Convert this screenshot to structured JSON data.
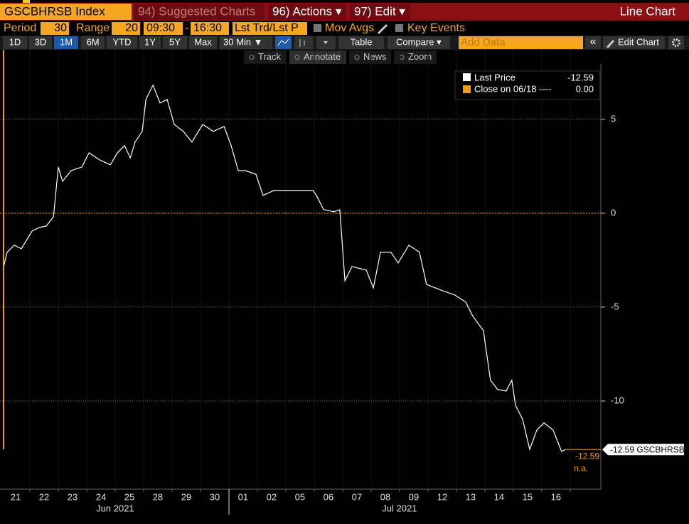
{
  "header": {
    "ticker": "GSCBHRSB Index",
    "suggested": "94) Suggested Charts",
    "actions": "96) Actions ▾",
    "edit": "97) Edit ▾",
    "view": "Line Chart"
  },
  "settings": {
    "period_label": "Period",
    "period": "30",
    "range_label": "Range",
    "range": "20",
    "start": "09:30",
    "dash": "-",
    "end": "16:30",
    "field": "Lst Trd/Lst P",
    "mov_avgs": "Mov Avgs",
    "key_events": "Key Events"
  },
  "toolbar": {
    "buttons": [
      "1D",
      "3D",
      "1M",
      "6M",
      "YTD",
      "1Y",
      "5Y",
      "Max"
    ],
    "interval": "30 Min ▼",
    "table": "Table",
    "compare": "Compare ▾",
    "add_data": "Add Data",
    "collapse": "«",
    "edit_chart": "Edit Chart"
  },
  "chart_tools": [
    "Track",
    "Annotate",
    "News",
    "Zoom"
  ],
  "chart_data": {
    "type": "line",
    "series": [
      {
        "name": "Last Price",
        "color": "#ffffff",
        "value_label": "-12.59",
        "x": [
          0.08,
          0.2,
          0.45,
          0.7,
          1.08,
          1.33,
          1.58,
          1.83,
          2.0,
          2.15,
          2.45,
          2.83,
          3.08,
          3.45,
          3.83,
          4.08,
          4.33,
          4.53,
          4.7,
          4.95,
          5.08,
          5.33,
          5.58,
          5.83,
          6.08,
          6.4,
          6.7,
          7.08,
          7.45,
          7.83,
          8.08,
          8.33,
          8.58,
          8.95,
          9.2,
          9.58,
          10.95,
          11.08,
          11.33,
          11.7,
          11.9,
          12.08,
          12.33,
          12.83,
          13.08,
          13.33,
          13.7,
          13.95,
          14.33,
          14.7,
          14.95,
          15.45,
          15.95,
          16.33,
          16.58,
          16.95,
          17.2,
          17.45,
          17.75,
          17.95,
          18.08,
          18.33,
          18.58,
          18.83,
          19.08,
          19.4,
          19.7,
          19.83
        ],
        "values": [
          -2.84,
          -2.08,
          -1.7,
          -1.89,
          -0.95,
          -0.76,
          -0.68,
          -0.19,
          2.46,
          1.7,
          2.27,
          2.46,
          3.22,
          2.84,
          2.58,
          3.22,
          3.6,
          2.95,
          3.79,
          4.36,
          6.06,
          6.82,
          5.87,
          6.06,
          4.73,
          4.36,
          3.79,
          4.73,
          4.36,
          4.62,
          3.6,
          2.27,
          2.27,
          2.08,
          0.95,
          1.21,
          1.21,
          0.95,
          0.19,
          0.08,
          0.19,
          -3.6,
          -2.84,
          -3.03,
          -3.98,
          -2.08,
          -2.08,
          -2.65,
          -1.7,
          -2.08,
          -3.79,
          -4.09,
          -4.36,
          -4.73,
          -5.49,
          -6.25,
          -8.9,
          -9.39,
          -9.47,
          -8.9,
          -10.23,
          -10.98,
          -12.58,
          -11.55,
          -11.17,
          -11.55,
          -12.69,
          -12.59
        ]
      }
    ],
    "reference": {
      "name": "Close on 06/18 ----",
      "value": 0,
      "value_label": "0.00",
      "color": "#f39c12"
    },
    "last_tag": "-12.59 GSCBHRSB",
    "last_orange": "-12.59",
    "last_note": "n.a.",
    "ylim": [
      -14.7,
      7.95
    ],
    "yticks": [
      5,
      0,
      -5,
      -10
    ],
    "grid": true,
    "xlim": [
      0,
      21.08
    ],
    "xticks": [
      {
        "value": 0.5,
        "label": "21"
      },
      {
        "value": 1.5,
        "label": "22"
      },
      {
        "value": 2.5,
        "label": "23"
      },
      {
        "value": 3.5,
        "label": "24"
      },
      {
        "value": 4.5,
        "label": "25"
      },
      {
        "value": 5.5,
        "label": "28"
      },
      {
        "value": 6.5,
        "label": "29"
      },
      {
        "value": 7.5,
        "label": "30"
      },
      {
        "value": 8.5,
        "label": "01"
      },
      {
        "value": 9.5,
        "label": "02"
      },
      {
        "value": 10.5,
        "label": "05"
      },
      {
        "value": 11.5,
        "label": "06"
      },
      {
        "value": 12.5,
        "label": "07"
      },
      {
        "value": 13.5,
        "label": "08"
      },
      {
        "value": 14.5,
        "label": "09"
      },
      {
        "value": 15.5,
        "label": "12"
      },
      {
        "value": 16.5,
        "label": "13"
      },
      {
        "value": 17.5,
        "label": "14"
      },
      {
        "value": 18.5,
        "label": "15"
      },
      {
        "value": 19.5,
        "label": "16"
      }
    ],
    "x_groups": [
      {
        "value": 4,
        "label": "Jun 2021"
      },
      {
        "value": 14,
        "label": "Jul 2021"
      }
    ],
    "legend": "top-right"
  }
}
